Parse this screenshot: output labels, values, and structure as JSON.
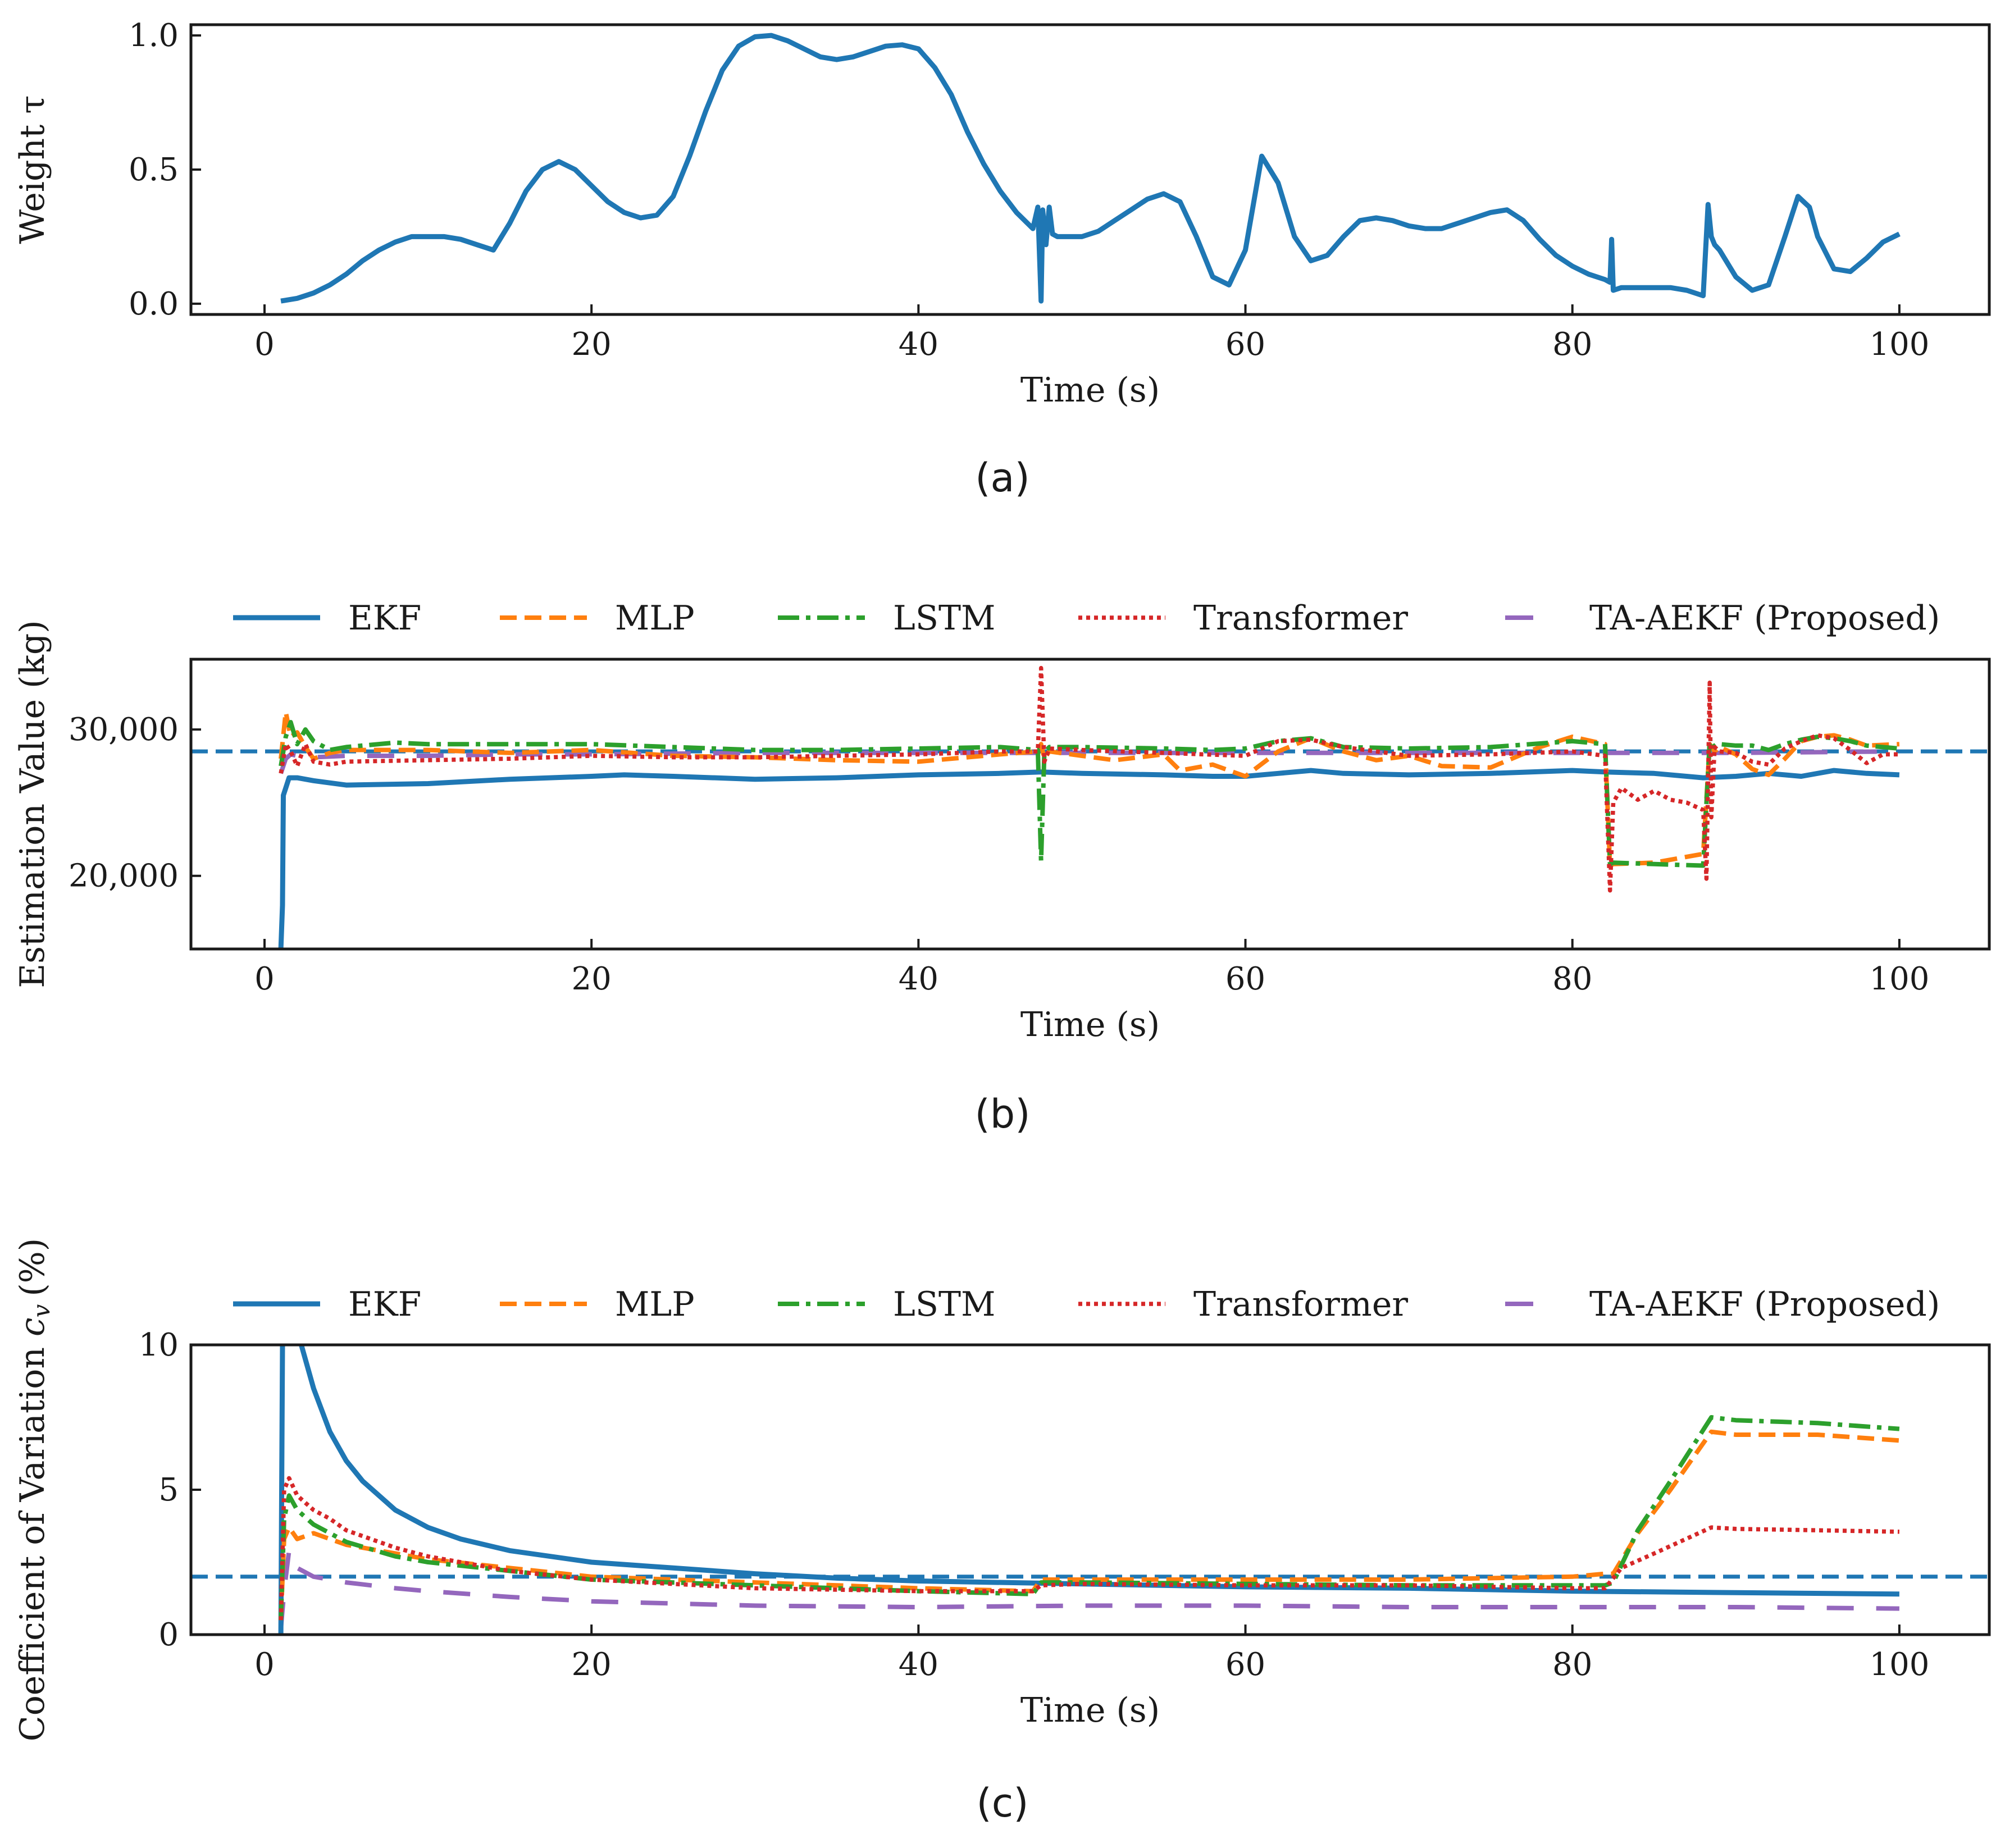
{
  "colors": {
    "EKF": "#1f77b4",
    "MLP": "#ff7f0e",
    "LSTM": "#2ca02c",
    "Transformer": "#d62728",
    "TA-AEKF (Proposed)": "#9467bd",
    "reference": "#1f77b4"
  },
  "chart_data": [
    {
      "type": "line",
      "caption": "(a)",
      "xlabel": "Time (s)",
      "ylabel": "Weight τ",
      "xlim": [
        -4.5,
        105.5
      ],
      "ylim": [
        -0.04,
        1.04
      ],
      "xticks": [
        0,
        20,
        40,
        60,
        80,
        100
      ],
      "xtick_labels": [
        "0",
        "20",
        "40",
        "60",
        "80",
        "100"
      ],
      "yticks": [
        0,
        0.5,
        1.0
      ],
      "ytick_labels": [
        "0.0",
        "0.5",
        "1.0"
      ],
      "series": [
        {
          "name": "Weight",
          "key": "EKF",
          "x": [
            1,
            2,
            3,
            4,
            5,
            6,
            7,
            8,
            9,
            10,
            11,
            12,
            13,
            14,
            15,
            16,
            17,
            18,
            19,
            20,
            21,
            22,
            23,
            24,
            25,
            26,
            27,
            28,
            29,
            30,
            31,
            32,
            33,
            34,
            35,
            36,
            37,
            38,
            39,
            40,
            41,
            42,
            43,
            44,
            45,
            46,
            47,
            47.3,
            47.5,
            47.6,
            47.8,
            48,
            48.2,
            48.5,
            49,
            50,
            51,
            52,
            53,
            54,
            55,
            56,
            57,
            58,
            59,
            60,
            61,
            62,
            63,
            64,
            65,
            66,
            67,
            68,
            69,
            70,
            71,
            72,
            73,
            74,
            75,
            76,
            77,
            78,
            79,
            80,
            81,
            82,
            82.3,
            82.4,
            82.5,
            83,
            84,
            85,
            86,
            87,
            88,
            88.3,
            88.5,
            88.7,
            89,
            90,
            91,
            92,
            93,
            93.8,
            94.5,
            95,
            96,
            97,
            98,
            99,
            100
          ],
          "y": [
            0.01,
            0.02,
            0.04,
            0.07,
            0.11,
            0.16,
            0.2,
            0.23,
            0.25,
            0.25,
            0.25,
            0.24,
            0.22,
            0.2,
            0.3,
            0.42,
            0.5,
            0.53,
            0.5,
            0.44,
            0.38,
            0.34,
            0.32,
            0.33,
            0.4,
            0.55,
            0.72,
            0.87,
            0.96,
            0.995,
            1.0,
            0.98,
            0.95,
            0.92,
            0.91,
            0.92,
            0.94,
            0.96,
            0.965,
            0.95,
            0.88,
            0.78,
            0.64,
            0.52,
            0.42,
            0.34,
            0.28,
            0.36,
            0.01,
            0.35,
            0.22,
            0.36,
            0.26,
            0.25,
            0.25,
            0.25,
            0.27,
            0.31,
            0.35,
            0.39,
            0.41,
            0.38,
            0.25,
            0.1,
            0.07,
            0.2,
            0.55,
            0.45,
            0.25,
            0.16,
            0.18,
            0.25,
            0.31,
            0.32,
            0.31,
            0.29,
            0.28,
            0.28,
            0.3,
            0.32,
            0.34,
            0.35,
            0.31,
            0.24,
            0.18,
            0.14,
            0.11,
            0.09,
            0.08,
            0.24,
            0.05,
            0.06,
            0.06,
            0.06,
            0.06,
            0.05,
            0.03,
            0.37,
            0.25,
            0.22,
            0.2,
            0.1,
            0.05,
            0.07,
            0.25,
            0.4,
            0.36,
            0.25,
            0.13,
            0.12,
            0.17,
            0.23,
            0.26
          ]
        }
      ]
    },
    {
      "type": "line",
      "caption": "(b)",
      "xlabel": "Time (s)",
      "ylabel": "Estimation Value (kg)",
      "xlim": [
        -4.5,
        105.5
      ],
      "ylim": [
        15000,
        34800
      ],
      "xticks": [
        0,
        20,
        40,
        60,
        80,
        100
      ],
      "xtick_labels": [
        "0",
        "20",
        "40",
        "60",
        "80",
        "100"
      ],
      "yticks": [
        20000,
        30000
      ],
      "ytick_labels": [
        "20,000",
        "30,000"
      ],
      "reference_line": 28500,
      "legend": [
        "EKF",
        "MLP",
        "LSTM",
        "Transformer",
        "TA-AEKF (Proposed)"
      ],
      "series": [
        {
          "name": "EKF",
          "x": [
            1,
            1.1,
            1.15,
            1.3,
            1.5,
            2,
            3,
            5,
            10,
            15,
            20,
            22,
            25,
            30,
            35,
            40,
            45,
            47.5,
            50,
            55,
            58,
            60,
            62,
            64,
            66,
            70,
            75,
            80,
            82,
            85,
            88,
            90,
            92,
            94,
            96,
            98,
            100
          ],
          "y": [
            15000,
            18000,
            25500,
            26000,
            26700,
            26700,
            26500,
            26200,
            26300,
            26600,
            26800,
            26900,
            26800,
            26600,
            26700,
            26900,
            27000,
            27100,
            27000,
            26900,
            26800,
            26800,
            27000,
            27200,
            27000,
            26900,
            27000,
            27200,
            27100,
            27000,
            26700,
            26800,
            27000,
            26800,
            27200,
            27000,
            26900
          ]
        },
        {
          "name": "MLP",
          "x": [
            1,
            1.3,
            1.6,
            2,
            2.5,
            3,
            4,
            5,
            10,
            15,
            20,
            25,
            30,
            35,
            40,
            45,
            47.3,
            47.5,
            47.7,
            48,
            50,
            52,
            55,
            56,
            58,
            60,
            62,
            64,
            66,
            68,
            70,
            72,
            75,
            78,
            80,
            82,
            82.3,
            82.5,
            85,
            88,
            88.4,
            88.7,
            89,
            90,
            91,
            92,
            93,
            94,
            95,
            96,
            97,
            98,
            100
          ],
          "y": [
            28000,
            31200,
            29500,
            29800,
            28800,
            28000,
            28400,
            28600,
            28600,
            28400,
            28600,
            28200,
            28100,
            27900,
            27800,
            28300,
            28500,
            29000,
            28000,
            28500,
            28200,
            27900,
            28300,
            27200,
            27600,
            26800,
            28500,
            29400,
            28500,
            27900,
            28200,
            27500,
            27400,
            28800,
            29500,
            29000,
            20700,
            20800,
            20900,
            21500,
            29000,
            28500,
            28800,
            28300,
            27300,
            26900,
            28000,
            29200,
            29500,
            29600,
            29300,
            28900,
            29000
          ]
        },
        {
          "name": "LSTM",
          "x": [
            1,
            1.3,
            1.6,
            2,
            2.5,
            3,
            4,
            5,
            8,
            10,
            15,
            20,
            25,
            30,
            35,
            40,
            45,
            47.3,
            47.5,
            47.7,
            48,
            50,
            55,
            58,
            60,
            62,
            64,
            66,
            70,
            75,
            80,
            82,
            82.3,
            82.5,
            85,
            88,
            88.4,
            88.7,
            89,
            90,
            91,
            92,
            93,
            94,
            95,
            96,
            97,
            98,
            100
          ],
          "y": [
            27500,
            29500,
            30500,
            29000,
            30000,
            29200,
            28600,
            28800,
            29100,
            29000,
            29000,
            29000,
            28800,
            28600,
            28600,
            28700,
            28800,
            28600,
            21000,
            28400,
            28800,
            28800,
            28700,
            28600,
            28700,
            29200,
            29400,
            28800,
            28700,
            28800,
            29200,
            29000,
            20800,
            20900,
            20800,
            20700,
            29200,
            28800,
            29000,
            28900,
            28900,
            28600,
            29000,
            29300,
            29500,
            29400,
            29200,
            28900,
            28700
          ]
        },
        {
          "name": "Transformer",
          "x": [
            1,
            1.3,
            1.6,
            2,
            2.5,
            3,
            4,
            5,
            10,
            15,
            20,
            25,
            30,
            35,
            40,
            45,
            47.3,
            47.5,
            47.7,
            48,
            50,
            55,
            60,
            62,
            64,
            66,
            70,
            75,
            80,
            82,
            82.3,
            82.5,
            83,
            84,
            85,
            86,
            87,
            88,
            88.2,
            88.4,
            88.5,
            88.7,
            89,
            90,
            91,
            92,
            93,
            94,
            95,
            96,
            97,
            98,
            99,
            100
          ],
          "y": [
            27000,
            29000,
            28500,
            27500,
            29000,
            27800,
            27600,
            27800,
            27900,
            28000,
            28200,
            28100,
            28100,
            28200,
            28300,
            28500,
            28500,
            34200,
            27800,
            28700,
            28600,
            28400,
            28200,
            29200,
            29300,
            28800,
            28200,
            28300,
            28500,
            28200,
            19000,
            25000,
            26000,
            25200,
            25800,
            25200,
            25000,
            24500,
            19800,
            33200,
            24000,
            28800,
            28500,
            28400,
            27800,
            27600,
            28700,
            29200,
            29600,
            29400,
            28600,
            27700,
            28300,
            28300
          ]
        },
        {
          "name": "TA-AEKF (Proposed)",
          "x": [
            1,
            1.3,
            1.6,
            2,
            3,
            5,
            10,
            15,
            20,
            30,
            40,
            50,
            60,
            70,
            80,
            90,
            100
          ],
          "y": [
            27000,
            28000,
            28300,
            28200,
            28100,
            28200,
            28200,
            28300,
            28300,
            28400,
            28400,
            28400,
            28400,
            28400,
            28400,
            28400,
            28500
          ]
        }
      ]
    },
    {
      "type": "line",
      "caption": "(c)",
      "xlabel": "Time (s)",
      "ylabel": "Coefficient of Variation",
      "ylabel_symbol": "c",
      "ylabel_subscript": "v",
      "ylabel_unit": "(%)",
      "xlim": [
        -4.5,
        105.5
      ],
      "ylim": [
        0,
        10
      ],
      "xticks": [
        0,
        20,
        40,
        60,
        80,
        100
      ],
      "xtick_labels": [
        "0",
        "20",
        "40",
        "60",
        "80",
        "100"
      ],
      "yticks": [
        0,
        5,
        10
      ],
      "ytick_labels": [
        "0",
        "5",
        "10"
      ],
      "reference_line": 2,
      "legend": [
        "EKF",
        "MLP",
        "LSTM",
        "Transformer",
        "TA-AEKF (Proposed)"
      ],
      "series": [
        {
          "name": "EKF",
          "x": [
            1,
            1.1,
            1.5,
            2,
            3,
            4,
            5,
            6,
            8,
            10,
            12,
            15,
            20,
            25,
            30,
            35,
            40,
            50,
            60,
            70,
            80,
            90,
            100
          ],
          "y": [
            0,
            10.0,
            12.0,
            10.5,
            8.5,
            7.0,
            6.0,
            5.3,
            4.3,
            3.7,
            3.3,
            2.9,
            2.5,
            2.3,
            2.1,
            1.95,
            1.85,
            1.75,
            1.65,
            1.6,
            1.5,
            1.45,
            1.4
          ]
        },
        {
          "name": "MLP",
          "x": [
            1,
            1.2,
            1.5,
            2,
            3,
            4,
            5,
            8,
            10,
            15,
            20,
            30,
            40,
            47,
            47.5,
            50,
            60,
            70,
            80,
            82,
            82.5,
            84,
            86,
            88.5,
            90,
            95,
            100
          ],
          "y": [
            0.5,
            3.3,
            3.7,
            3.3,
            3.5,
            3.3,
            3.1,
            2.8,
            2.6,
            2.3,
            2.0,
            1.8,
            1.6,
            1.5,
            1.9,
            1.9,
            1.9,
            1.9,
            2.0,
            2.1,
            2.1,
            3.5,
            5.0,
            7.0,
            6.9,
            6.9,
            6.7
          ]
        },
        {
          "name": "LSTM",
          "x": [
            1,
            1.2,
            1.5,
            2,
            3,
            4,
            5,
            8,
            10,
            15,
            20,
            30,
            40,
            47,
            47.5,
            50,
            60,
            70,
            80,
            82,
            82.5,
            84,
            86,
            88.5,
            90,
            95,
            100
          ],
          "y": [
            0.5,
            4.0,
            4.8,
            4.3,
            3.8,
            3.5,
            3.2,
            2.7,
            2.5,
            2.2,
            1.9,
            1.7,
            1.5,
            1.4,
            1.8,
            1.8,
            1.75,
            1.7,
            1.7,
            1.7,
            1.8,
            3.6,
            5.3,
            7.5,
            7.4,
            7.3,
            7.1
          ]
        },
        {
          "name": "Transformer",
          "x": [
            1,
            1.2,
            1.5,
            2,
            3,
            4,
            5,
            8,
            10,
            15,
            20,
            30,
            40,
            47,
            47.5,
            50,
            60,
            70,
            80,
            82,
            83,
            85,
            88.5,
            90,
            95,
            100
          ],
          "y": [
            0.5,
            5.0,
            5.4,
            4.8,
            4.3,
            4.0,
            3.6,
            3.0,
            2.7,
            2.2,
            1.9,
            1.6,
            1.5,
            1.5,
            1.7,
            1.75,
            1.7,
            1.7,
            1.6,
            1.6,
            2.3,
            2.8,
            3.7,
            3.65,
            3.6,
            3.55
          ]
        },
        {
          "name": "TA-AEKF (Proposed)",
          "x": [
            1,
            1.2,
            1.5,
            2,
            3,
            5,
            8,
            10,
            15,
            20,
            30,
            40,
            50,
            60,
            70,
            80,
            90,
            100
          ],
          "y": [
            0.2,
            1.5,
            2.9,
            2.3,
            2.0,
            1.8,
            1.6,
            1.5,
            1.3,
            1.15,
            1.0,
            0.95,
            1.0,
            1.0,
            0.95,
            0.95,
            0.95,
            0.9
          ]
        }
      ]
    }
  ]
}
